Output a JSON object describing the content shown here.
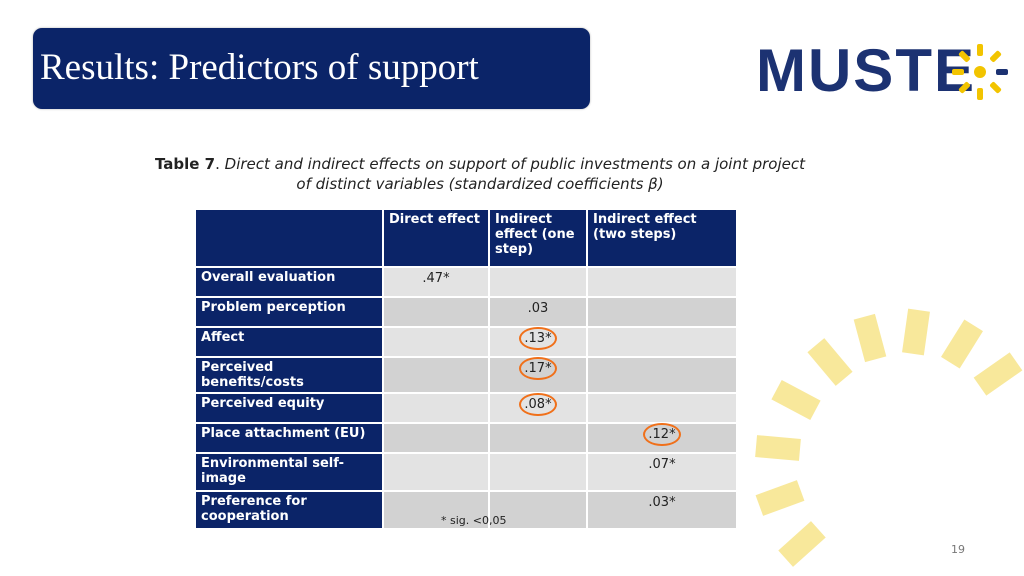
{
  "slide": {
    "title": "Results: Predictors of support",
    "page_number": "19",
    "footnote": "* sig. <0,05"
  },
  "logo": {
    "text": "MUSTE",
    "icon": "sun-icon"
  },
  "caption": {
    "label": "Table 7",
    "sep": ". ",
    "line1": "Direct and indirect effects on support of public investments on a joint project",
    "line2": "of distinct variables (standardized coefficients β)"
  },
  "table": {
    "headers": [
      "",
      "Direct effect",
      "Indirect effect (one step)",
      "Indirect effect (two steps)"
    ],
    "rows": [
      {
        "label": "Overall evaluation",
        "direct": ".47*",
        "indirect1": "",
        "indirect2": ""
      },
      {
        "label": "Problem perception",
        "direct": "",
        "indirect1": ".03",
        "indirect2": ""
      },
      {
        "label": "Affect",
        "direct": "",
        "indirect1": ".13*",
        "indirect2": ""
      },
      {
        "label": "Perceived benefits/costs",
        "direct": "",
        "indirect1": ".17*",
        "indirect2": ""
      },
      {
        "label": "Perceived equity",
        "direct": "",
        "indirect1": ".08*",
        "indirect2": ""
      },
      {
        "label": "Place attachment (EU)",
        "direct": "",
        "indirect1": "",
        "indirect2": ".12*"
      },
      {
        "label": "Environmental self-image",
        "direct": "",
        "indirect1": "",
        "indirect2": ".07*"
      },
      {
        "label": "Preference for cooperation",
        "direct": "",
        "indirect1": "",
        "indirect2": ".03*"
      }
    ]
  },
  "colors": {
    "navy": "#0b2468",
    "accent_orange": "#f0701a",
    "sun_yellow": "#f2c400"
  }
}
